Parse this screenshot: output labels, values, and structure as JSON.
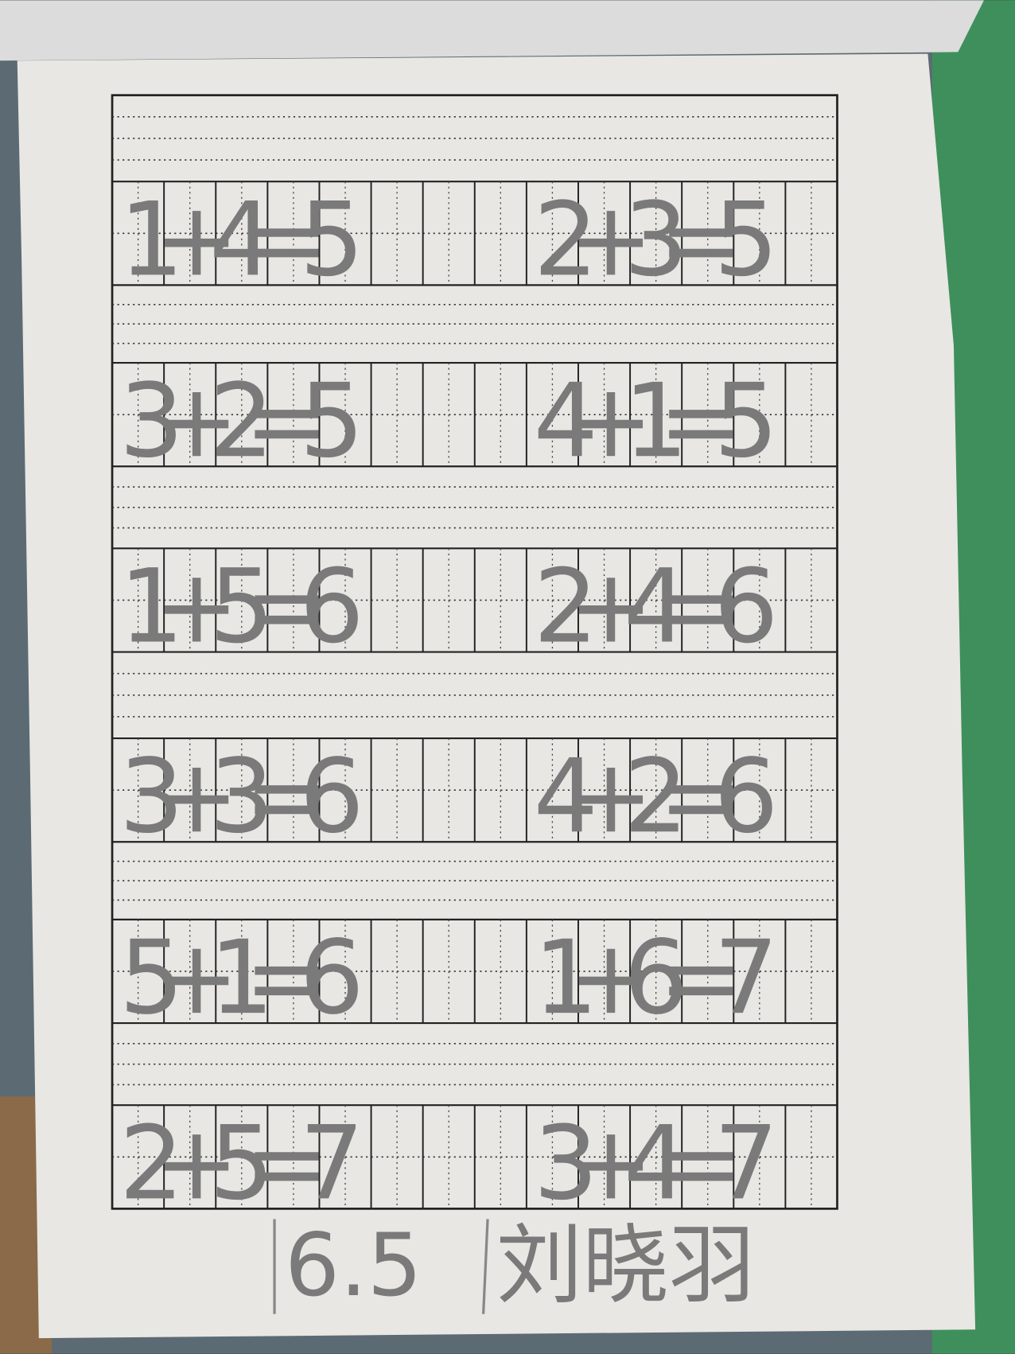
{
  "worksheet": {
    "rows": [
      [
        "1+4=5",
        "2+3=5"
      ],
      [
        "3+2=5",
        "4+1=5"
      ],
      [
        "1+5=6",
        "2+4=6"
      ],
      [
        "3+3=6",
        "4+2=6"
      ],
      [
        "5+1=6",
        "1+6=7"
      ],
      [
        "2+5=7",
        "3+4=7"
      ]
    ]
  },
  "footer": {
    "score": "6.5",
    "name": "刘晓羽"
  }
}
